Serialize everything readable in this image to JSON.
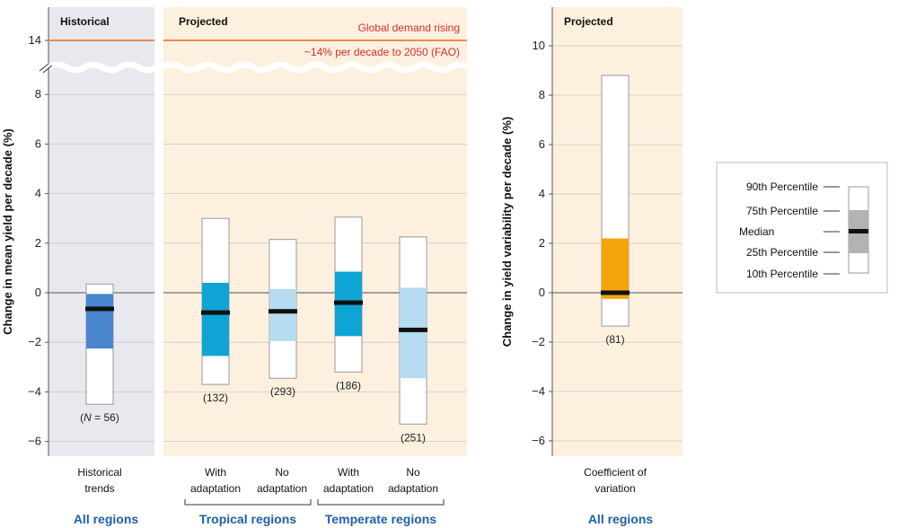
{
  "chart_data": [
    {
      "type": "box",
      "ylabel": "Change in mean yield per decade (%)",
      "ylim": [
        -6.5,
        9
      ],
      "yticks": [
        -6,
        -4,
        -2,
        0,
        2,
        4,
        6,
        8
      ],
      "ytick_labels": [
        "−6",
        "−4",
        "−2",
        "0",
        "2",
        "4",
        "6",
        "8"
      ],
      "axis_break": {
        "below": 8.6,
        "label": "14",
        "value": 14
      },
      "panels": [
        {
          "label": "Historical",
          "shaded": "historical"
        },
        {
          "label": "Projected",
          "shaded": "projected"
        }
      ],
      "demand_line": {
        "value": 14,
        "line1": "Global demand rising",
        "line2": "~14% per decade to 2050 (FAO)"
      },
      "boxes": [
        {
          "line1": "Historical",
          "line2": "trends",
          "count": "(N = 56)",
          "count_prefix": "(",
          "count_n": "N",
          "count_suffix": " = 56)",
          "p10": -4.5,
          "p25": -2.25,
          "median": -0.65,
          "p75": -0.05,
          "p90": 0.35,
          "color": "#4a86cf"
        },
        {
          "line1": "With",
          "line2": "adaptation",
          "count": "(132)",
          "p10": -3.7,
          "p25": -2.55,
          "median": -0.8,
          "p75": 0.4,
          "p90": 3.0,
          "color": "#0ea5d4"
        },
        {
          "line1": "No",
          "line2": "adaptation",
          "count": "(293)",
          "p10": -3.45,
          "p25": -1.95,
          "median": -0.75,
          "p75": 0.15,
          "p90": 2.15,
          "color": "#b5dcf0"
        },
        {
          "line1": "With",
          "line2": "adaptation",
          "count": "(186)",
          "p10": -3.2,
          "p25": -1.75,
          "median": -0.4,
          "p75": 0.85,
          "p90": 3.05,
          "color": "#0ea5d4"
        },
        {
          "line1": "No",
          "line2": "adaptation",
          "count": "(251)",
          "p10": -5.3,
          "p25": -3.45,
          "median": -1.5,
          "p75": 0.2,
          "p90": 2.25,
          "color": "#b5dcf0"
        }
      ],
      "groups": [
        "All regions",
        "Tropical regions",
        "Temperate regions"
      ]
    },
    {
      "type": "box",
      "ylabel": "Change in yield variability per decade (%)",
      "ylim": [
        -6.5,
        11.5
      ],
      "yticks": [
        -6,
        -4,
        -2,
        0,
        2,
        4,
        6,
        8,
        10
      ],
      "ytick_labels": [
        "−6",
        "−4",
        "−2",
        "0",
        "2",
        "4",
        "6",
        "8",
        "10"
      ],
      "panel": "Projected",
      "boxes": [
        {
          "line1": "Coefficient of",
          "line2": "variation",
          "count": "(81)",
          "p10": -1.35,
          "p25": -0.25,
          "median": 0.0,
          "p75": 2.2,
          "p90": 8.8,
          "color": "#f6a40c"
        }
      ],
      "group": "All regions"
    }
  ],
  "legend": {
    "items": [
      "90th  Percentile",
      "75th  Percentile",
      "Median",
      "25th  Percentile",
      "10th  Percentile"
    ]
  },
  "colors": {
    "historical_bg": "#e8e8ef",
    "projected_bg": "#fdf0df",
    "demand_line": "#f08a4b",
    "demand_text": "#d32f2f",
    "group_label": "#1f5fa8",
    "median": "#111111",
    "legend_box": "#b3b3b3"
  }
}
